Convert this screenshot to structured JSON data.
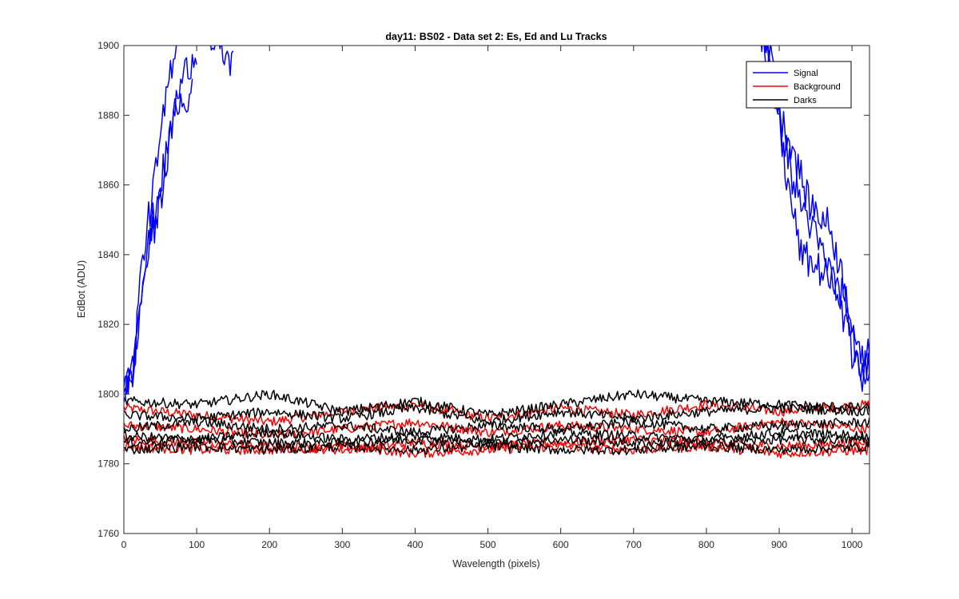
{
  "chart_data": {
    "type": "line",
    "title": "day11: BS02 - Data set 2: Es, Ed and Lu Tracks",
    "xlabel": "Wavelength (pixels)",
    "ylabel": "EdBot (ADU)",
    "xlim": [
      0,
      1024
    ],
    "ylim": [
      1760,
      1900
    ],
    "xticks": [
      0,
      100,
      200,
      300,
      400,
      500,
      600,
      700,
      800,
      900,
      1000
    ],
    "yticks": [
      1760,
      1780,
      1800,
      1820,
      1840,
      1860,
      1880,
      1900
    ],
    "grid": false,
    "legend_position": "top-right",
    "legend": [
      {
        "label": "Signal",
        "color": "#0000ff"
      },
      {
        "label": "Background",
        "color": "#ff0000"
      },
      {
        "label": "Darks",
        "color": "#000000"
      }
    ],
    "series": [
      {
        "group": "Signal",
        "color": "#0000ff",
        "x": [
          0,
          10,
          15,
          20,
          30,
          40,
          50,
          60,
          70,
          80,
          90,
          100,
          110,
          120,
          150,
          860,
          880,
          900,
          920,
          950,
          980,
          1000,
          1010,
          1024
        ],
        "y": [
          1804,
          1806,
          1810,
          1828,
          1845,
          1858,
          1872,
          1888,
          1900,
          1905,
          1910,
          1912,
          1910,
          1900,
          1895,
          1910,
          1904,
          1880,
          1860,
          1845,
          1830,
          1812,
          1806,
          1810
        ]
      },
      {
        "group": "Signal",
        "color": "#0000ff",
        "x": [
          0,
          12,
          20,
          30,
          40,
          50,
          60,
          70,
          80,
          90,
          100,
          870,
          890,
          910,
          930,
          960,
          990,
          1005,
          1015,
          1024
        ],
        "y": [
          1802,
          1807,
          1826,
          1838,
          1850,
          1860,
          1870,
          1882,
          1890,
          1895,
          1898,
          1905,
          1895,
          1862,
          1840,
          1835,
          1828,
          1810,
          1804,
          1808
        ]
      },
      {
        "group": "Signal",
        "color": "#0000ff",
        "x": [
          0,
          15,
          25,
          35,
          45,
          55,
          65,
          75,
          85,
          95,
          880,
          900,
          920,
          940,
          970,
          1000,
          1012,
          1024
        ],
        "y": [
          1800,
          1808,
          1830,
          1842,
          1850,
          1862,
          1875,
          1885,
          1880,
          1890,
          1900,
          1880,
          1870,
          1855,
          1848,
          1822,
          1808,
          1815
        ]
      },
      {
        "group": "Background",
        "color": "#ff0000",
        "x": [
          0,
          100,
          200,
          300,
          400,
          500,
          600,
          700,
          800,
          900,
          1024
        ],
        "y": [
          1796,
          1794,
          1792,
          1795,
          1797,
          1793,
          1796,
          1794,
          1797,
          1795,
          1797
        ]
      },
      {
        "group": "Background",
        "color": "#ff0000",
        "x": [
          0,
          100,
          200,
          300,
          400,
          500,
          600,
          700,
          800,
          900,
          1024
        ],
        "y": [
          1791,
          1790,
          1788,
          1790,
          1792,
          1789,
          1791,
          1790,
          1789,
          1792,
          1790
        ]
      },
      {
        "group": "Background",
        "color": "#ff0000",
        "x": [
          0,
          100,
          200,
          300,
          400,
          500,
          600,
          700,
          800,
          900,
          1024
        ],
        "y": [
          1787,
          1786,
          1785,
          1784,
          1786,
          1785,
          1786,
          1787,
          1786,
          1785,
          1786
        ]
      },
      {
        "group": "Background",
        "color": "#ff0000",
        "x": [
          0,
          100,
          200,
          300,
          400,
          500,
          600,
          700,
          800,
          900,
          1024
        ],
        "y": [
          1785,
          1784,
          1784,
          1785,
          1783,
          1784,
          1785,
          1784,
          1785,
          1783,
          1784
        ]
      },
      {
        "group": "Darks",
        "color": "#000000",
        "x": [
          0,
          100,
          200,
          300,
          400,
          500,
          600,
          700,
          800,
          900,
          1024
        ],
        "y": [
          1798,
          1797,
          1800,
          1795,
          1798,
          1794,
          1797,
          1800,
          1798,
          1797,
          1796
        ]
      },
      {
        "group": "Darks",
        "color": "#000000",
        "x": [
          0,
          100,
          200,
          300,
          400,
          500,
          600,
          700,
          800,
          900,
          1024
        ],
        "y": [
          1794,
          1793,
          1795,
          1793,
          1796,
          1792,
          1795,
          1793,
          1795,
          1796,
          1795
        ]
      },
      {
        "group": "Darks",
        "color": "#000000",
        "x": [
          0,
          100,
          200,
          300,
          400,
          500,
          600,
          700,
          800,
          900,
          1024
        ],
        "y": [
          1790,
          1792,
          1790,
          1791,
          1789,
          1791,
          1790,
          1792,
          1790,
          1791,
          1792
        ]
      },
      {
        "group": "Darks",
        "color": "#000000",
        "x": [
          0,
          100,
          200,
          300,
          400,
          500,
          600,
          700,
          800,
          900,
          1024
        ],
        "y": [
          1788,
          1787,
          1789,
          1787,
          1788,
          1787,
          1789,
          1788,
          1787,
          1789,
          1788
        ]
      },
      {
        "group": "Darks",
        "color": "#000000",
        "x": [
          0,
          100,
          200,
          300,
          400,
          500,
          600,
          700,
          800,
          900,
          1024
        ],
        "y": [
          1786,
          1787,
          1786,
          1786,
          1787,
          1786,
          1787,
          1786,
          1786,
          1787,
          1787
        ]
      },
      {
        "group": "Darks",
        "color": "#000000",
        "x": [
          0,
          100,
          200,
          300,
          400,
          500,
          600,
          700,
          800,
          900,
          1024
        ],
        "y": [
          1784,
          1785,
          1784,
          1785,
          1784,
          1785,
          1784,
          1784,
          1785,
          1784,
          1785
        ]
      }
    ]
  }
}
